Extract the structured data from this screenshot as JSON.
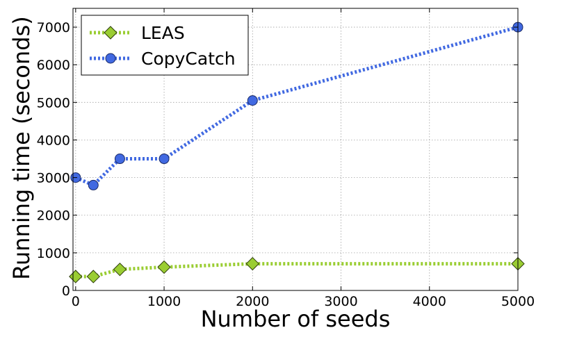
{
  "chart_data": {
    "type": "line",
    "title": "",
    "xlabel": "Number of seeds",
    "ylabel": "Running time (seconds)",
    "xlim": [
      -30,
      5000
    ],
    "ylim": [
      0,
      7500
    ],
    "xticks": [
      0,
      1000,
      2000,
      3000,
      4000,
      5000
    ],
    "yticks": [
      0,
      1000,
      2000,
      3000,
      4000,
      5000,
      6000,
      7000
    ],
    "grid": true,
    "legend_position": "top-left",
    "series": [
      {
        "name": "LEAS",
        "color": "#9acd32",
        "marker": "diamond",
        "linestyle": "dotted",
        "x": [
          0,
          200,
          500,
          1000,
          2000,
          5000
        ],
        "y": [
          370,
          370,
          560,
          620,
          710,
          710
        ]
      },
      {
        "name": "CopyCatch",
        "color": "#4169e1",
        "marker": "circle",
        "linestyle": "dotted",
        "x": [
          0,
          200,
          500,
          1000,
          2000,
          5000
        ],
        "y": [
          3000,
          2800,
          3500,
          3500,
          5050,
          7000
        ]
      }
    ]
  }
}
